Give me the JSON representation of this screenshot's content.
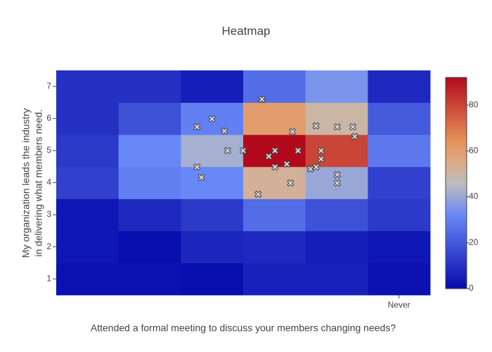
{
  "chart_data": {
    "type": "heatmap",
    "title": "Heatmap",
    "xlabel": "Attended a formal meeting to discuss your members changing needs?",
    "ylabel": [
      "My organization leads the industry",
      "in delivering what members need."
    ],
    "x": [
      1,
      2,
      3,
      4,
      5,
      6
    ],
    "y": [
      1,
      2,
      3,
      4,
      5,
      6,
      7
    ],
    "z": [
      [
        2,
        2,
        1,
        6,
        6,
        2
      ],
      [
        3,
        1,
        7,
        8,
        5,
        3
      ],
      [
        3,
        8,
        12,
        25,
        18,
        12
      ],
      [
        14,
        30,
        32,
        52,
        40,
        14
      ],
      [
        12,
        32,
        42,
        92,
        80,
        28
      ],
      [
        10,
        18,
        30,
        60,
        50,
        20
      ],
      [
        10,
        10,
        5,
        25,
        35,
        8
      ]
    ],
    "xlim": [
      0.5,
      6.5
    ],
    "xticks": [
      {
        "value": 6,
        "label": "Never"
      }
    ],
    "ylim": [
      0.5,
      7.5
    ],
    "yticks": [
      1,
      2,
      3,
      4,
      5,
      6,
      7
    ],
    "zlim": [
      0,
      92
    ],
    "zticks": [
      0,
      20,
      40,
      60,
      80
    ],
    "colorscale": [
      [
        0,
        "#050aac"
      ],
      [
        0.35,
        "#6a89f7"
      ],
      [
        0.5,
        "#bebebe"
      ],
      [
        0.6,
        "#dcaa84"
      ],
      [
        0.7,
        "#e6915a"
      ],
      [
        1,
        "#b20a1c"
      ]
    ],
    "overlay": {
      "type": "scatter",
      "marker": "x",
      "color": "#dddddd",
      "x": [
        3.8,
        2.76,
        3.0,
        3.2,
        3.25,
        3.5,
        2.76,
        2.83,
        3.91,
        4.01,
        4.01,
        4.2,
        4.29,
        4.38,
        4.26,
        3.74,
        4.67,
        5.01,
        5.26,
        5.29,
        4.75,
        4.75,
        4.58,
        4.67,
        5.01,
        5.01
      ],
      "y": [
        6.6,
        5.74,
        5.99,
        5.61,
        5.0,
        5.0,
        4.49,
        4.16,
        4.82,
        5.0,
        4.49,
        4.58,
        5.59,
        5.0,
        3.99,
        3.64,
        5.77,
        5.74,
        5.74,
        5.44,
        5.0,
        4.74,
        4.43,
        4.49,
        4.25,
        3.99
      ]
    }
  }
}
